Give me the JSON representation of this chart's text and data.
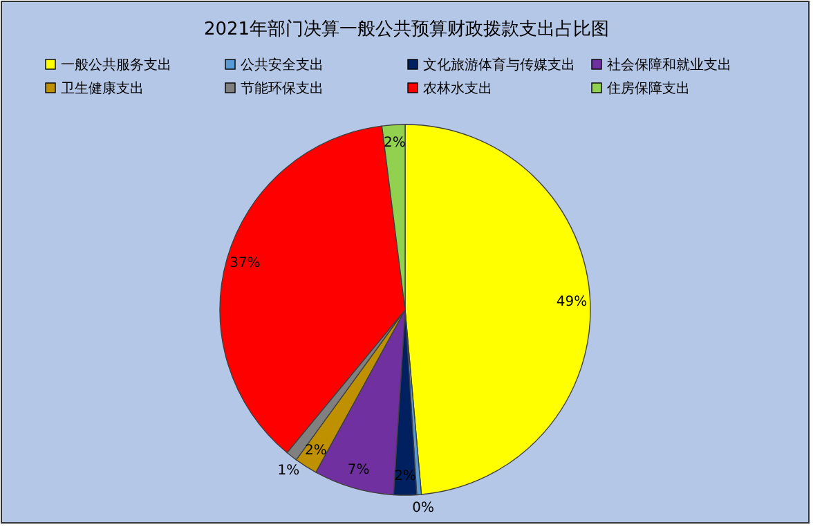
{
  "chart_data": {
    "type": "pie",
    "title": "2021年部门决算一般公共预算财政拨款支出占比图",
    "categories": [
      "一般公共服务支出",
      "公共安全支出",
      "文化旅游体育与传媒支出",
      "社会保障和就业支出",
      "卫生健康支出",
      "节能环保支出",
      "农林水支出",
      "住房保障支出"
    ],
    "values": [
      48.6,
      0.4,
      2,
      7,
      2,
      1,
      37,
      2
    ],
    "colors": [
      "#ffff00",
      "#5b9bd5",
      "#002060",
      "#7030a0",
      "#bf9000",
      "#808080",
      "#ff0000",
      "#92d050"
    ],
    "value_labels": [
      "49%",
      "0%",
      "2%",
      "7%",
      "2%",
      "1%",
      "37%",
      "2%"
    ],
    "legend": "top"
  }
}
